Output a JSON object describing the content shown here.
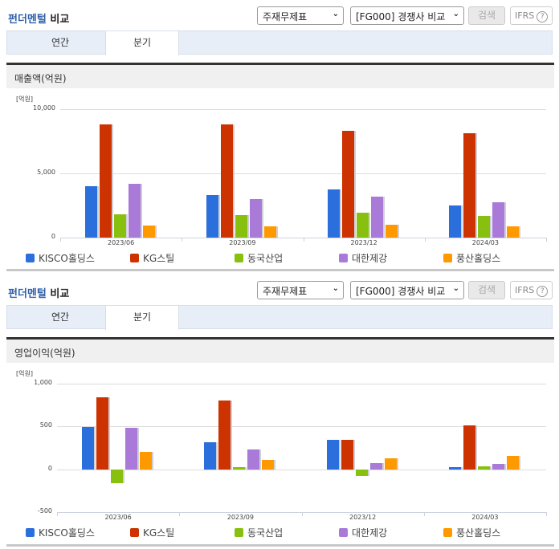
{
  "sections": [
    {
      "header": {
        "title_blue": "펀더멘털",
        "title_rest": " 비교",
        "select1": "주재무제표",
        "select2": "[FG000] 경쟁사 비교",
        "search_label": "검색",
        "ifrs_label": "IFRS",
        "help_icon": "?"
      },
      "tabs": [
        {
          "label": "연간",
          "active": false
        },
        {
          "label": "분기",
          "active": true
        }
      ],
      "metric_label": "매출액(억원)"
    },
    {
      "header": {
        "title_blue": "펀더멘털",
        "title_rest": " 비교",
        "select1": "주재무제표",
        "select2": "[FG000] 경쟁사 비교",
        "search_label": "검색",
        "ifrs_label": "IFRS",
        "help_icon": "?"
      },
      "tabs": [
        {
          "label": "연간",
          "active": false
        },
        {
          "label": "분기",
          "active": true
        }
      ],
      "metric_label": "영업이익(억원)"
    }
  ],
  "legend": [
    {
      "name": "KISCO홀딩스",
      "color": "#2a6fdb"
    },
    {
      "name": "KG스틸",
      "color": "#cc3300"
    },
    {
      "name": "동국산업",
      "color": "#88c010"
    },
    {
      "name": "대한제강",
      "color": "#a97ad8"
    },
    {
      "name": "풍산홀딩스",
      "color": "#ff9900"
    }
  ],
  "chart_data": [
    {
      "type": "bar",
      "title": "매출액(억원)",
      "unit_label": "[억원]",
      "categories": [
        "2023/06",
        "2023/09",
        "2023/12",
        "2024/03"
      ],
      "yticks": [
        "10,000",
        "5,000",
        "0"
      ],
      "ylim": [
        0,
        10000
      ],
      "series": [
        {
          "name": "KISCO홀딩스",
          "values": [
            4000,
            3300,
            3750,
            2500
          ]
        },
        {
          "name": "KG스틸",
          "values": [
            8800,
            8800,
            8300,
            8150
          ]
        },
        {
          "name": "동국산업",
          "values": [
            1800,
            1750,
            1950,
            1700
          ]
        },
        {
          "name": "대한제강",
          "values": [
            4200,
            3000,
            3200,
            2750
          ]
        },
        {
          "name": "풍산홀딩스",
          "values": [
            950,
            880,
            1000,
            880
          ]
        }
      ],
      "legend_position": "bottom",
      "grid": true
    },
    {
      "type": "bar",
      "title": "영업이익(억원)",
      "unit_label": "[억원]",
      "categories": [
        "2023/06",
        "2023/09",
        "2023/12",
        "2024/03"
      ],
      "yticks": [
        "1,000",
        "500",
        "0",
        "-500"
      ],
      "ylim": [
        -500,
        1000
      ],
      "series": [
        {
          "name": "KISCO홀딩스",
          "values": [
            490,
            320,
            340,
            25
          ]
        },
        {
          "name": "KG스틸",
          "values": [
            840,
            800,
            340,
            515
          ]
        },
        {
          "name": "동국산업",
          "values": [
            -160,
            25,
            -75,
            30
          ]
        },
        {
          "name": "대한제강",
          "values": [
            480,
            235,
            75,
            65
          ]
        },
        {
          "name": "풍산홀딩스",
          "values": [
            200,
            105,
            125,
            155
          ]
        }
      ],
      "legend_position": "bottom",
      "grid": true
    }
  ]
}
